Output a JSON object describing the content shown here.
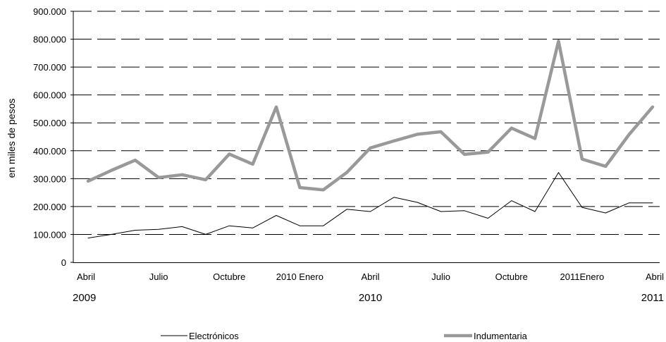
{
  "chart_data": {
    "type": "line",
    "title": "",
    "ylabel": "en miles de pesos",
    "xlabel": "",
    "ylim": [
      0,
      900000
    ],
    "yticks": [
      {
        "value": 0,
        "label": "0"
      },
      {
        "value": 100000,
        "label": "100.000"
      },
      {
        "value": 200000,
        "label": "200.000"
      },
      {
        "value": 300000,
        "label": "300.000"
      },
      {
        "value": 400000,
        "label": "400.000"
      },
      {
        "value": 500000,
        "label": "500.000"
      },
      {
        "value": 600000,
        "label": "600.000"
      },
      {
        "value": 700000,
        "label": "700.000"
      },
      {
        "value": 800000,
        "label": "800.000"
      },
      {
        "value": 900000,
        "label": "900.000"
      }
    ],
    "x": [
      "2009-04",
      "2009-05",
      "2009-06",
      "2009-07",
      "2009-08",
      "2009-09",
      "2009-10",
      "2009-11",
      "2009-12",
      "2010-01",
      "2010-02",
      "2010-03",
      "2010-04",
      "2010-05",
      "2010-06",
      "2010-07",
      "2010-08",
      "2010-09",
      "2010-10",
      "2010-11",
      "2010-12",
      "2011-01",
      "2011-02",
      "2011-03",
      "2011-04"
    ],
    "xtick_labels": [
      {
        "index": 0,
        "label": "Abril"
      },
      {
        "index": 3,
        "label": "Julio"
      },
      {
        "index": 6,
        "label": "Octubre"
      },
      {
        "index": 9,
        "label": "2010 Enero"
      },
      {
        "index": 12,
        "label": "Abril"
      },
      {
        "index": 15,
        "label": "Julio"
      },
      {
        "index": 18,
        "label": "Octubre"
      },
      {
        "index": 21,
        "label": "2011Enero"
      },
      {
        "index": 24,
        "label": "Abril"
      }
    ],
    "year_labels": [
      {
        "index": 0,
        "label": "2009"
      },
      {
        "index": 12,
        "label": "2010"
      },
      {
        "index": 24,
        "label": "2011"
      }
    ],
    "grid": "horizontal dashed",
    "legend_position": "bottom",
    "series": [
      {
        "name": "Electrónicos",
        "color": "#000000",
        "values": [
          87000,
          100000,
          115000,
          118000,
          128000,
          100000,
          131000,
          123000,
          168000,
          131000,
          131000,
          190000,
          182000,
          233000,
          215000,
          182000,
          185000,
          158000,
          221000,
          182000,
          322000,
          197000,
          177000,
          213000,
          213000
        ]
      },
      {
        "name": "Indumentaria",
        "color": "#999999",
        "values": [
          291000,
          330000,
          366000,
          304000,
          314000,
          296000,
          388000,
          352000,
          557000,
          268000,
          260000,
          322000,
          410000,
          435000,
          459000,
          468000,
          387000,
          395000,
          481000,
          444000,
          793000,
          370000,
          344000,
          458000,
          557000
        ]
      }
    ]
  }
}
